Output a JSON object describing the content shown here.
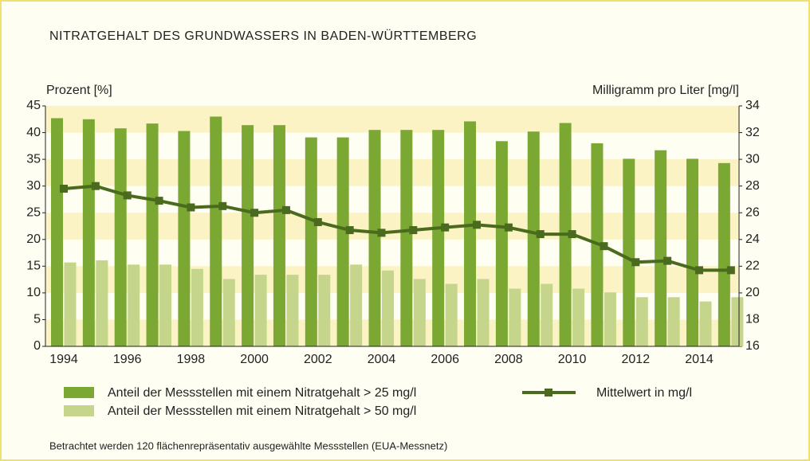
{
  "chart_data": {
    "type": "bar",
    "title": "NITRATGEHALT DES GRUNDWASSERS IN BADEN-WÜRTTEMBERG",
    "ylabel": "Prozent [%]",
    "y2label": "Milligramm pro Liter [mg/l]",
    "footnote": "Betrachtet werden 120 flächenrepräsentativ ausgewählte Messstellen (EUA-Messnetz)",
    "categories": [
      "1994",
      null,
      "1996",
      null,
      "1998",
      null,
      "2000",
      null,
      "2002",
      null,
      "2004",
      null,
      "2006",
      null,
      "2008",
      null,
      "2010",
      null,
      "2012",
      null,
      "2014",
      null
    ],
    "series": [
      {
        "name": "Anteil der Messstellen mit einem Nitratgehalt > 25 mg/l",
        "color": "#7aa832",
        "values": [
          42.7,
          42.5,
          40.8,
          41.7,
          40.3,
          43.0,
          41.4,
          41.4,
          39.1,
          39.1,
          40.5,
          40.5,
          40.5,
          42.1,
          38.4,
          40.2,
          41.8,
          38.0,
          35.1,
          36.7,
          35.1,
          34.3
        ]
      },
      {
        "name": "Anteil der Messstellen mit einem Nitratgehalt > 50 mg/l",
        "color": "#c5d68c",
        "values": [
          15.7,
          16.1,
          15.3,
          15.3,
          14.5,
          12.6,
          13.4,
          13.4,
          13.4,
          15.3,
          14.2,
          12.6,
          11.7,
          12.6,
          10.8,
          11.7,
          10.8,
          10.1,
          9.2,
          9.2,
          8.4,
          9.2
        ]
      },
      {
        "name": "Mittelwert in mg/l",
        "color": "#4a6a1e",
        "type": "line",
        "axis": "y2",
        "values": [
          27.8,
          28.0,
          27.3,
          26.9,
          26.4,
          26.5,
          26.0,
          26.2,
          25.3,
          24.7,
          24.5,
          24.7,
          24.9,
          25.1,
          24.9,
          24.4,
          24.4,
          23.5,
          22.3,
          22.4,
          21.7,
          21.7
        ]
      }
    ],
    "ylim": [
      0,
      45
    ],
    "yticks": [
      0,
      5,
      10,
      15,
      20,
      25,
      30,
      35,
      40,
      45
    ],
    "y2lim": [
      16,
      34
    ],
    "y2ticks": [
      16,
      18,
      20,
      22,
      24,
      26,
      28,
      30,
      32,
      34
    ],
    "band_color": "#fbf3c4"
  }
}
